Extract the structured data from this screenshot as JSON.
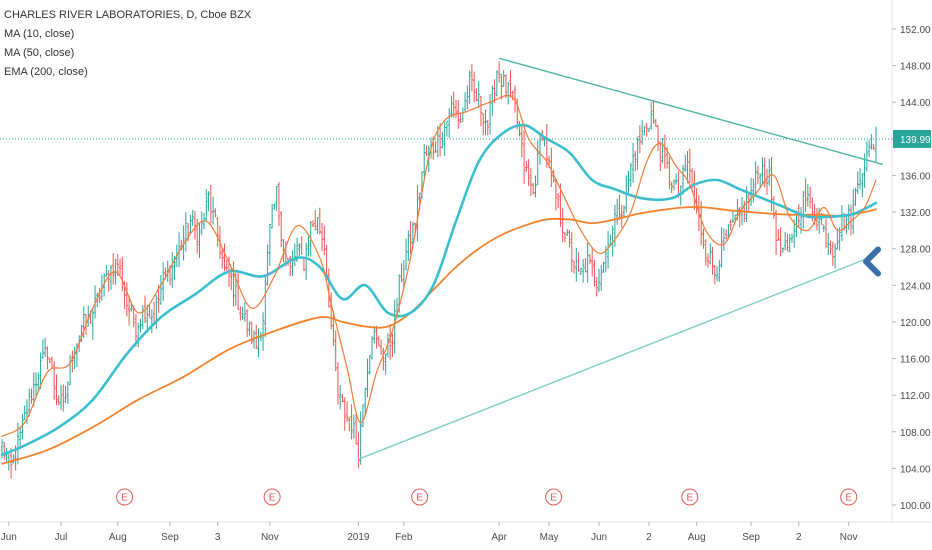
{
  "legend": {
    "symbol": "CHARLES RIVER LABORATORIES, D, Cboe BZX",
    "ma10": "MA (10, close)",
    "ma50": "MA (50, close)",
    "ema200": "EMA (200, close)"
  },
  "chart_data": {
    "type": "candlestick",
    "title": "CHARLES RIVER LABORATORIES, D, Cboe BZX",
    "xlabel": "",
    "ylabel": "",
    "ylim": [
      98,
      153
    ],
    "y_ticks": [
      100,
      104,
      108,
      112,
      116,
      120,
      124,
      128,
      132,
      136,
      140,
      144,
      148,
      152
    ],
    "y_tick_labels": [
      "100.00",
      "104.00",
      "108.00",
      "112.00",
      "116.00",
      "120.00",
      "124.00",
      "128.00",
      "132.00",
      "136.00",
      "140.00",
      "144.00",
      "148.00",
      "152.00"
    ],
    "x_tick_labels": [
      "Jun",
      "Jul",
      "Aug",
      "Sep",
      "3",
      "Nov",
      "2019",
      "Feb",
      "Apr",
      "May",
      "Jun",
      "2",
      "Aug",
      "Sep",
      "2",
      "Nov"
    ],
    "x_tick_index": [
      3,
      26,
      51,
      74,
      95,
      118,
      157,
      177,
      219,
      241,
      263,
      285,
      306,
      330,
      351,
      373
    ],
    "last_price": 139.99,
    "last_price_label": "139.99",
    "grid": false,
    "colors": {
      "up": "#26a69a",
      "down": "#ef5350",
      "ma10": "#f57c36",
      "ma50": "#3bbfcf",
      "ema200": "#f5822a",
      "trend_upper": "#4fb5a8",
      "trend_lower": "#7fcfc7",
      "last_price_line": "#26a69a",
      "arrow": "#3a6fa8",
      "earnings": "#e05a5a"
    },
    "earnings_labels": [
      "E",
      "E",
      "E",
      "E",
      "E",
      "E"
    ],
    "earnings_index": [
      54,
      119,
      184,
      243,
      303,
      373
    ],
    "trendlines": [
      {
        "name": "upper",
        "from": {
          "i": 219,
          "price": 148.8
        },
        "to": {
          "i": 388,
          "price": 137.2
        }
      },
      {
        "name": "lower",
        "from": {
          "i": 157,
          "price": 105.0
        },
        "to": {
          "i": 385,
          "price": 127.3
        }
      }
    ],
    "ma10_series": [
      [
        0,
        107.5
      ],
      [
        10,
        109.0
      ],
      [
        20,
        114.5
      ],
      [
        30,
        115.5
      ],
      [
        40,
        121.5
      ],
      [
        50,
        125.5
      ],
      [
        60,
        121.0
      ],
      [
        70,
        124.0
      ],
      [
        80,
        128.5
      ],
      [
        90,
        131.0
      ],
      [
        100,
        126.5
      ],
      [
        110,
        121.5
      ],
      [
        120,
        125.0
      ],
      [
        130,
        130.5
      ],
      [
        140,
        127.0
      ],
      [
        145,
        122.0
      ],
      [
        152,
        115.0
      ],
      [
        158,
        109.0
      ],
      [
        165,
        114.5
      ],
      [
        172,
        119.0
      ],
      [
        180,
        127.0
      ],
      [
        188,
        138.0
      ],
      [
        195,
        142.0
      ],
      [
        205,
        143.0
      ],
      [
        215,
        144.0
      ],
      [
        225,
        144.5
      ],
      [
        232,
        140.0
      ],
      [
        240,
        137.5
      ],
      [
        247,
        134.0
      ],
      [
        255,
        130.0
      ],
      [
        263,
        127.5
      ],
      [
        270,
        129.0
      ],
      [
        277,
        132.0
      ],
      [
        284,
        137.5
      ],
      [
        290,
        139.5
      ],
      [
        297,
        137.0
      ],
      [
        303,
        135.0
      ],
      [
        310,
        130.0
      ],
      [
        318,
        128.5
      ],
      [
        325,
        132.0
      ],
      [
        332,
        134.0
      ],
      [
        340,
        136.0
      ],
      [
        347,
        131.5
      ],
      [
        355,
        130.0
      ],
      [
        362,
        132.5
      ],
      [
        368,
        130.0
      ],
      [
        374,
        131.0
      ],
      [
        380,
        132.5
      ],
      [
        385,
        135.5
      ]
    ],
    "ma50_series": [
      [
        0,
        105.5
      ],
      [
        10,
        106.5
      ],
      [
        25,
        108.5
      ],
      [
        40,
        111.5
      ],
      [
        55,
        116.5
      ],
      [
        70,
        120.5
      ],
      [
        85,
        123.0
      ],
      [
        100,
        125.5
      ],
      [
        115,
        125.0
      ],
      [
        130,
        127.0
      ],
      [
        140,
        126.0
      ],
      [
        150,
        122.5
      ],
      [
        160,
        124.0
      ],
      [
        170,
        121.0
      ],
      [
        180,
        121.0
      ],
      [
        190,
        124.0
      ],
      [
        200,
        131.0
      ],
      [
        210,
        137.5
      ],
      [
        220,
        140.5
      ],
      [
        230,
        141.5
      ],
      [
        240,
        140.0
      ],
      [
        250,
        138.5
      ],
      [
        260,
        135.5
      ],
      [
        270,
        134.5
      ],
      [
        282,
        133.5
      ],
      [
        295,
        133.5
      ],
      [
        305,
        135.0
      ],
      [
        315,
        135.5
      ],
      [
        325,
        134.5
      ],
      [
        335,
        133.5
      ],
      [
        345,
        132.5
      ],
      [
        355,
        131.5
      ],
      [
        365,
        131.5
      ],
      [
        375,
        131.8
      ],
      [
        385,
        133.0
      ]
    ],
    "ema200_series": [
      [
        0,
        104.5
      ],
      [
        20,
        106.0
      ],
      [
        40,
        108.5
      ],
      [
        60,
        111.5
      ],
      [
        80,
        114.0
      ],
      [
        100,
        117.0
      ],
      [
        120,
        119.0
      ],
      [
        140,
        120.5
      ],
      [
        150,
        120.0
      ],
      [
        160,
        119.5
      ],
      [
        170,
        119.5
      ],
      [
        180,
        121.0
      ],
      [
        190,
        123.5
      ],
      [
        200,
        126.0
      ],
      [
        210,
        128.0
      ],
      [
        220,
        129.5
      ],
      [
        230,
        130.5
      ],
      [
        240,
        131.2
      ],
      [
        250,
        131.2
      ],
      [
        260,
        130.8
      ],
      [
        270,
        131.2
      ],
      [
        280,
        131.8
      ],
      [
        290,
        132.2
      ],
      [
        300,
        132.5
      ],
      [
        310,
        132.5
      ],
      [
        320,
        132.2
      ],
      [
        330,
        132.0
      ],
      [
        340,
        131.8
      ],
      [
        350,
        131.7
      ],
      [
        360,
        131.7
      ],
      [
        370,
        131.6
      ],
      [
        380,
        132.0
      ],
      [
        385,
        132.3
      ]
    ],
    "close_anchors": [
      [
        0,
        106.5
      ],
      [
        4,
        104.0
      ],
      [
        8,
        107.5
      ],
      [
        12,
        111.5
      ],
      [
        16,
        114.5
      ],
      [
        20,
        117.0
      ],
      [
        24,
        112.0
      ],
      [
        27,
        110.5
      ],
      [
        31,
        116.5
      ],
      [
        35,
        119.5
      ],
      [
        39,
        120.5
      ],
      [
        43,
        123.0
      ],
      [
        47,
        125.5
      ],
      [
        51,
        126.5
      ],
      [
        55,
        122.0
      ],
      [
        59,
        119.5
      ],
      [
        63,
        121.5
      ],
      [
        67,
        120.5
      ],
      [
        71,
        124.5
      ],
      [
        75,
        126.0
      ],
      [
        79,
        128.5
      ],
      [
        83,
        131.0
      ],
      [
        87,
        129.5
      ],
      [
        91,
        133.5
      ],
      [
        95,
        129.5
      ],
      [
        98,
        125.5
      ],
      [
        101,
        124.5
      ],
      [
        105,
        121.5
      ],
      [
        109,
        119.0
      ],
      [
        112,
        117.5
      ],
      [
        115,
        120.5
      ],
      [
        118,
        130.0
      ],
      [
        121,
        134.0
      ],
      [
        124,
        128.0
      ],
      [
        127,
        125.5
      ],
      [
        130,
        128.0
      ],
      [
        133,
        126.5
      ],
      [
        136,
        130.5
      ],
      [
        139,
        131.0
      ],
      [
        142,
        128.5
      ],
      [
        145,
        119.5
      ],
      [
        148,
        112.0
      ],
      [
        151,
        110.0
      ],
      [
        154,
        109.0
      ],
      [
        157,
        106.0
      ],
      [
        160,
        113.5
      ],
      [
        163,
        119.0
      ],
      [
        166,
        117.0
      ],
      [
        169,
        116.5
      ],
      [
        172,
        118.5
      ],
      [
        175,
        124.0
      ],
      [
        178,
        127.5
      ],
      [
        182,
        131.0
      ],
      [
        186,
        138.0
      ],
      [
        190,
        139.0
      ],
      [
        194,
        140.5
      ],
      [
        198,
        143.5
      ],
      [
        202,
        142.0
      ],
      [
        206,
        146.0
      ],
      [
        210,
        144.0
      ],
      [
        214,
        141.5
      ],
      [
        218,
        147.5
      ],
      [
        222,
        145.5
      ],
      [
        226,
        143.5
      ],
      [
        230,
        137.0
      ],
      [
        234,
        134.0
      ],
      [
        238,
        141.0
      ],
      [
        242,
        135.5
      ],
      [
        246,
        131.5
      ],
      [
        250,
        128.0
      ],
      [
        254,
        125.0
      ],
      [
        258,
        126.5
      ],
      [
        262,
        124.5
      ],
      [
        266,
        127.5
      ],
      [
        270,
        131.5
      ],
      [
        274,
        133.0
      ],
      [
        278,
        138.0
      ],
      [
        282,
        140.5
      ],
      [
        286,
        142.5
      ],
      [
        290,
        139.0
      ],
      [
        294,
        136.0
      ],
      [
        298,
        134.0
      ],
      [
        302,
        137.5
      ],
      [
        306,
        132.0
      ],
      [
        310,
        128.0
      ],
      [
        314,
        125.5
      ],
      [
        318,
        128.5
      ],
      [
        322,
        130.5
      ],
      [
        326,
        132.0
      ],
      [
        330,
        134.0
      ],
      [
        334,
        137.0
      ],
      [
        338,
        135.5
      ],
      [
        342,
        128.0
      ],
      [
        346,
        127.5
      ],
      [
        350,
        131.5
      ],
      [
        354,
        133.5
      ],
      [
        358,
        132.0
      ],
      [
        362,
        130.0
      ],
      [
        366,
        128.0
      ],
      [
        370,
        131.0
      ],
      [
        374,
        131.5
      ],
      [
        378,
        136.5
      ],
      [
        382,
        138.5
      ],
      [
        385,
        139.99
      ]
    ]
  }
}
